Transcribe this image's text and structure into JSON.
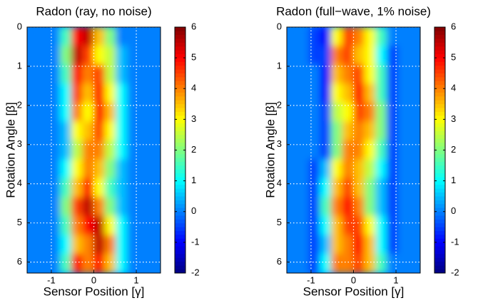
{
  "chart_data": [
    {
      "type": "heatmap",
      "title": "Radon (ray, no noise)",
      "xlabel": "Sensor Position [γ]",
      "ylabel": "Rotation Angle [β]",
      "xlim": [
        -1.57,
        1.57
      ],
      "ylim": [
        0,
        6.28
      ],
      "y_reversed": true,
      "xticks": [
        -1,
        0,
        1
      ],
      "yticks": [
        0,
        1,
        2,
        3,
        4,
        5,
        6
      ],
      "grid": true,
      "colormap": "jet",
      "clim": [
        -2,
        6
      ],
      "cticks": [
        -2,
        -1,
        0,
        1,
        2,
        3,
        4,
        5,
        6
      ],
      "values": [
        [
          0,
          0,
          0,
          1.5,
          5,
          5.5,
          3.5,
          2,
          0,
          0,
          0,
          0
        ],
        [
          0,
          0,
          0,
          2,
          5.5,
          4.5,
          3,
          2.5,
          0.5,
          0,
          0,
          0
        ],
        [
          0,
          0,
          0,
          1.5,
          5,
          4,
          4.5,
          2.5,
          0.5,
          0,
          0,
          0
        ],
        [
          0,
          0,
          0,
          1,
          4.5,
          3.5,
          5,
          3,
          1,
          0,
          0,
          0
        ],
        [
          0,
          0,
          0,
          1,
          4,
          3,
          5,
          3.5,
          1,
          0,
          0,
          0
        ],
        [
          0,
          0,
          0,
          0.5,
          3,
          3.5,
          4.5,
          3,
          1,
          0,
          0,
          0
        ],
        [
          0,
          0,
          0,
          0.5,
          2.5,
          4,
          4,
          2.5,
          1,
          0,
          0,
          0
        ],
        [
          0,
          0,
          0,
          1,
          3,
          4,
          3.5,
          2,
          0.5,
          0,
          0,
          0
        ],
        [
          0,
          0,
          0,
          1.5,
          3.5,
          5,
          3,
          1.5,
          0.5,
          0,
          0,
          0
        ],
        [
          0,
          0,
          0,
          2,
          4.5,
          5.5,
          4,
          2,
          0.5,
          0,
          0,
          0
        ],
        [
          0,
          0,
          0,
          1.5,
          4,
          5,
          5.5,
          3,
          1,
          0,
          0,
          0
        ],
        [
          0,
          0,
          0,
          1,
          3.5,
          4,
          5.5,
          4,
          1,
          0,
          0,
          0
        ],
        [
          0,
          0,
          0,
          1.5,
          5,
          4,
          5,
          3.5,
          1,
          0,
          0,
          0
        ]
      ]
    },
    {
      "type": "heatmap",
      "title": "Radon (full−wave, 1% noise)",
      "xlabel": "Sensor Position [γ]",
      "ylabel": "Rotation Angle [β]",
      "xlim": [
        -1.57,
        1.57
      ],
      "ylim": [
        0,
        6.28
      ],
      "y_reversed": true,
      "xticks": [
        -1,
        0,
        1
      ],
      "yticks": [
        0,
        1,
        2,
        3,
        4,
        5,
        6
      ],
      "grid": true,
      "colormap": "jet",
      "clim": [
        -2,
        6
      ],
      "cticks": [
        -2,
        -1,
        0,
        1,
        2,
        3,
        4,
        5,
        6
      ],
      "values": [
        [
          0,
          0,
          -0.5,
          -1,
          3,
          4.5,
          4,
          3,
          1.5,
          0,
          0,
          0
        ],
        [
          0,
          0,
          -0.5,
          -0.5,
          4,
          4.5,
          3.5,
          3,
          1,
          -0.5,
          0,
          0
        ],
        [
          0,
          0,
          0,
          -1,
          3.5,
          4,
          4.5,
          3,
          1.5,
          -0.5,
          0,
          0
        ],
        [
          0,
          0,
          0,
          -1,
          3,
          3.5,
          5,
          3.5,
          1.5,
          -0.5,
          0,
          0
        ],
        [
          0,
          0,
          0,
          -0.5,
          2.5,
          3,
          4.5,
          4,
          2,
          -0.5,
          0,
          0
        ],
        [
          0,
          0,
          0,
          -0.5,
          2,
          3.5,
          4,
          3.5,
          2,
          -0.5,
          0,
          0
        ],
        [
          0,
          0,
          0,
          -0.5,
          2,
          4,
          4,
          3,
          1.5,
          -0.5,
          0,
          0
        ],
        [
          0,
          0,
          -0.5,
          0.5,
          3,
          4,
          3.5,
          2.5,
          1,
          -0.5,
          0,
          0
        ],
        [
          0,
          0,
          -0.5,
          1,
          3.5,
          4.5,
          3.5,
          2,
          0.5,
          -0.5,
          0,
          0
        ],
        [
          0,
          0,
          -0.5,
          1.5,
          4,
          5,
          4,
          2,
          0.5,
          -0.5,
          0,
          0
        ],
        [
          0,
          0,
          -0.5,
          1,
          3.5,
          4.5,
          4.5,
          3,
          1,
          -0.5,
          0,
          0
        ],
        [
          0,
          0,
          -0.5,
          0.5,
          3.5,
          4,
          5,
          3.5,
          1,
          -0.5,
          0,
          0
        ],
        [
          0,
          0,
          -0.5,
          1,
          4,
          4,
          4.5,
          3.5,
          1.5,
          0,
          0,
          0
        ]
      ]
    }
  ]
}
